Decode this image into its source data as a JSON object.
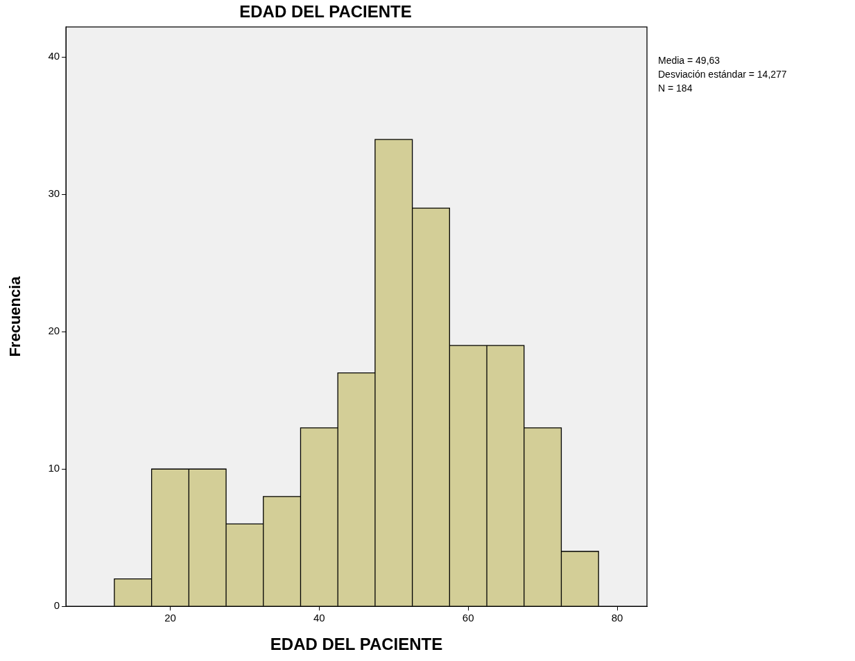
{
  "chart_data": {
    "type": "histogram",
    "title": "EDAD DEL PACIENTE",
    "xlabel": "EDAD DEL PACIENTE",
    "ylabel": "Frecuencia",
    "bins": [
      12.5,
      17.5,
      22.5,
      27.5,
      32.5,
      37.5,
      42.5,
      47.5,
      52.5,
      57.5,
      62.5,
      67.5,
      72.5,
      77.5
    ],
    "values": [
      2,
      10,
      10,
      6,
      8,
      13,
      17,
      34,
      29,
      19,
      19,
      13,
      4
    ],
    "color": "#d3ce97",
    "xlim": [
      6,
      84
    ],
    "xticks": [
      20,
      40,
      60,
      80
    ],
    "ylim": [
      0,
      42.2
    ],
    "yticks": [
      0,
      10,
      20,
      30,
      40
    ],
    "grid": false,
    "legend": false,
    "annotations": [
      "Media = 49,63",
      "Desviación estándar = 14,277",
      "N = 184"
    ]
  }
}
